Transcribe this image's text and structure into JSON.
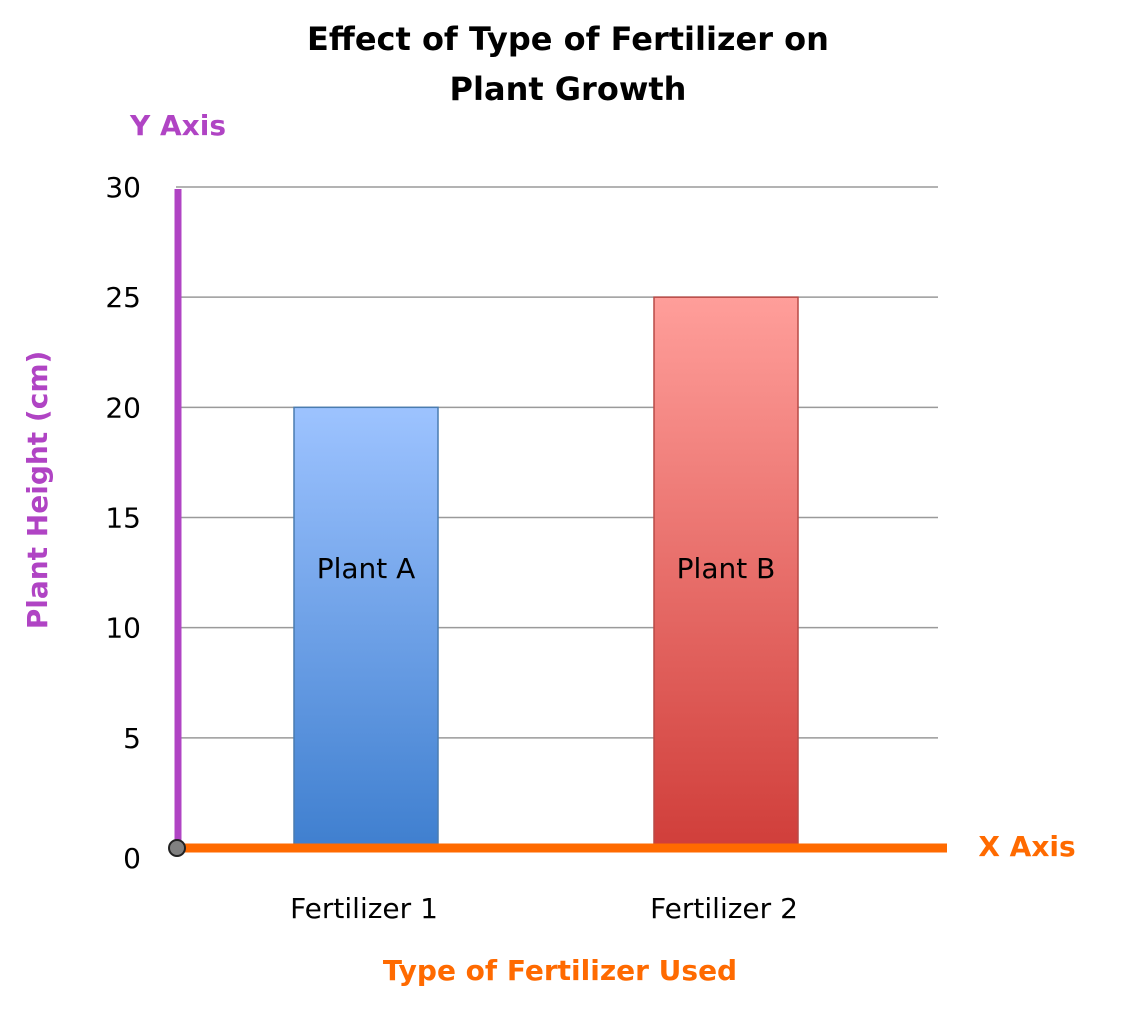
{
  "chart_data": {
    "type": "bar",
    "title_lines": [
      "Effect of Type of Fertilizer on",
      "Plant Growth"
    ],
    "xlabel": "Type of Fertilizer Used",
    "ylabel": "Plant Height (cm)",
    "y_axis_callout": "Y Axis",
    "x_axis_callout": "X Axis",
    "categories": [
      "Fertilizer 1",
      "Fertilizer 2"
    ],
    "values": [
      20,
      25
    ],
    "bar_labels": [
      "Plant A",
      "Plant B"
    ],
    "bar_colors": [
      {
        "top": "#9DC3FF",
        "bottom": "#3F7FCF",
        "border": "#4A7CB0"
      },
      {
        "top": "#FF9E9A",
        "bottom": "#D03E3A",
        "border": "#B84A46"
      }
    ],
    "ylim": [
      0,
      30
    ],
    "yticks": [
      0,
      5,
      10,
      15,
      20,
      25,
      30
    ],
    "grid": true,
    "legend": "none",
    "colors": {
      "y_axis": "#B044C4",
      "x_axis": "#FF6A00",
      "grid": "#9A9A9A",
      "origin_marker": "#808080"
    }
  }
}
